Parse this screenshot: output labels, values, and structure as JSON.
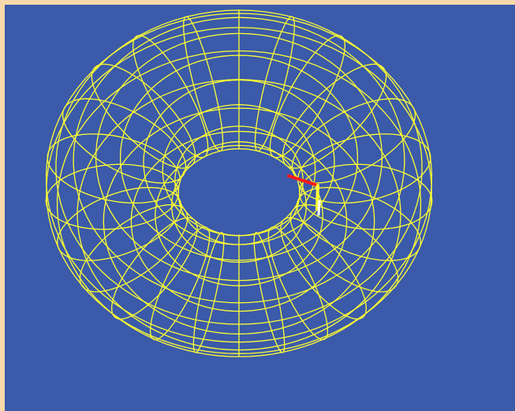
{
  "window": {
    "frame_color": "#f6d9a9"
  },
  "viewport": {
    "background_color": "#3b5aa9"
  },
  "torus": {
    "wire_color": "#ffff33",
    "major_meridians": 16,
    "minor_rings": 24,
    "projection": "perspective"
  },
  "axes_marker": {
    "x_axis_color": "#ff1a1a",
    "y_axis_color": "#ffff33",
    "z_axis_color": "#ffffff"
  }
}
